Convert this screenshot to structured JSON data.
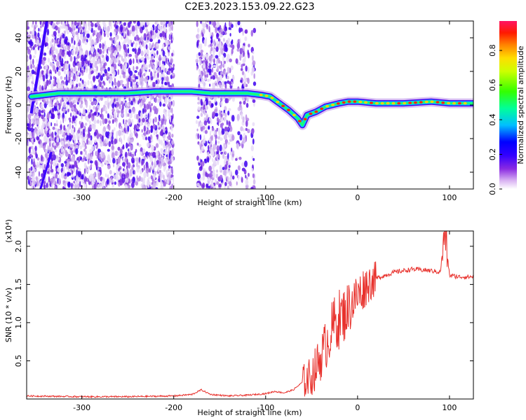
{
  "title": "C2E3.2023.153.09.22.G23",
  "chart_data": [
    {
      "type": "heatmap",
      "xlabel": "Height of straight line (km)",
      "ylabel": "Frequency (Hz)",
      "xlim": [
        -360,
        126
      ],
      "ylim": [
        -50,
        50
      ],
      "xticks": [
        -300,
        -200,
        -100,
        0,
        100
      ],
      "yticks": [
        -40,
        -20,
        0,
        20,
        40
      ],
      "colorbar": {
        "label": "Normalized spectral amplitude",
        "range": [
          0,
          0.97
        ],
        "ticks": [
          0.0,
          0.2,
          0.4,
          0.6,
          0.8
        ],
        "colormap": [
          "#ffffff",
          "#e6d0f5",
          "#9a4de6",
          "#5a00f0",
          "#0000ff",
          "#00bfff",
          "#00ff80",
          "#7fff00",
          "#ffff00",
          "#ff8000",
          "#ff0000",
          "#ff1493"
        ]
      },
      "main_trace": {
        "x": [
          -355,
          -340,
          -325,
          -300,
          -250,
          -220,
          -200,
          -180,
          -160,
          -140,
          -120,
          -105,
          -95,
          -85,
          -75,
          -65,
          -60,
          -55,
          -45,
          -35,
          -20,
          -10,
          0,
          20,
          50,
          80,
          100,
          126
        ],
        "y": [
          5,
          6,
          7,
          7,
          7,
          8,
          8,
          8,
          7,
          7,
          7,
          6,
          5,
          1,
          -3,
          -8,
          -12,
          -6,
          -4,
          -1,
          1,
          2,
          2,
          1,
          1,
          2,
          1,
          1
        ]
      },
      "oblique_streak": {
        "x": [
          -355,
          -338
        ],
        "y": [
          -5,
          50
        ]
      }
    },
    {
      "type": "line",
      "xlabel": "Height of straight line (km)",
      "ylabel": "SNR (10 * v/v)",
      "y_multiplier": "(x10⁴)",
      "xlim": [
        -360,
        126
      ],
      "ylim": [
        0,
        2.2
      ],
      "xticks": [
        -300,
        -200,
        -100,
        0,
        100
      ],
      "yticks": [
        0.5,
        1.0,
        1.5,
        2.0
      ],
      "ytick_labels": [
        "0.5",
        "1.0",
        "1.5",
        "2.0"
      ],
      "color": "#e8322d",
      "x": [
        -360,
        -300,
        -250,
        -200,
        -180,
        -170,
        -160,
        -140,
        -120,
        -100,
        -90,
        -80,
        -70,
        -60,
        -50,
        -45,
        -40,
        -35,
        -30,
        -25,
        -20,
        -15,
        -10,
        0,
        10,
        20,
        30,
        40,
        50,
        60,
        70,
        80,
        90,
        95,
        100,
        110,
        126
      ],
      "y": [
        0.04,
        0.03,
        0.03,
        0.04,
        0.06,
        0.12,
        0.06,
        0.04,
        0.05,
        0.07,
        0.1,
        0.08,
        0.12,
        0.22,
        0.3,
        0.42,
        0.55,
        0.7,
        0.85,
        1.0,
        1.05,
        1.1,
        1.2,
        1.35,
        1.5,
        1.58,
        1.62,
        1.66,
        1.68,
        1.7,
        1.69,
        1.68,
        1.66,
        2.2,
        1.62,
        1.6,
        1.6
      ]
    }
  ]
}
